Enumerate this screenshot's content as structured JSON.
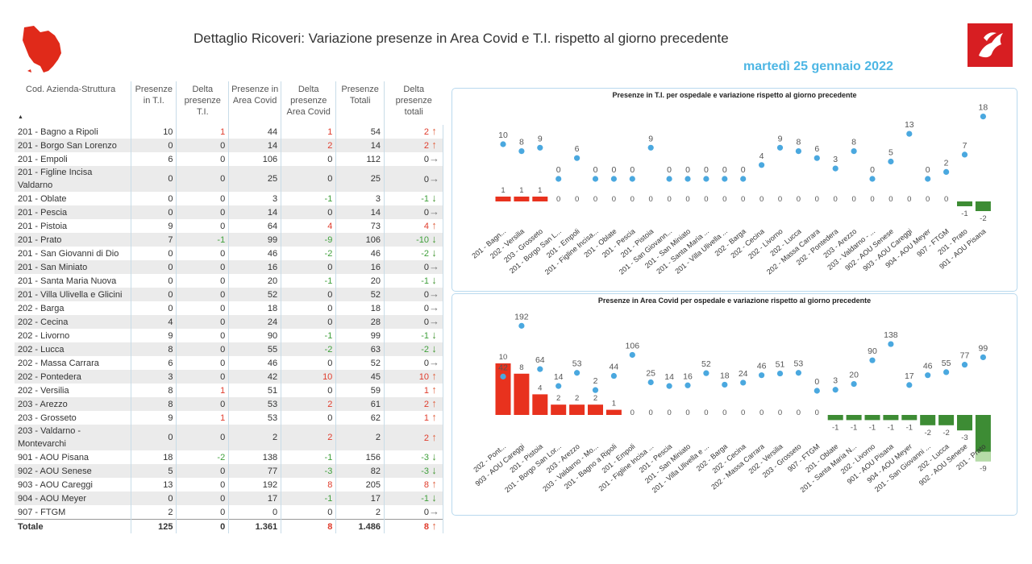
{
  "header": {
    "title": "Dettaglio Ricoveri: Variazione presenze in Area Covid e T.I. rispetto al giorno precedente",
    "date": "martedì 25 gennaio 2022"
  },
  "table": {
    "columns": [
      "Cod. Azienda-Struttura",
      "Presenze in T.I.",
      "Delta presenze T.I.",
      "Presenze in Area Covid",
      "Delta presenze Area Covid",
      "Presenze Totali",
      "Delta presenze totali"
    ],
    "rows": [
      {
        "name": "201 - Bagno a Ripoli",
        "ti": "10",
        "dti": "1",
        "ac": "44",
        "dac": "1",
        "tot": "54",
        "dtot": "2",
        "dir": "up"
      },
      {
        "name": "201 - Borgo San Lorenzo",
        "ti": "0",
        "dti": "0",
        "ac": "14",
        "dac": "2",
        "tot": "14",
        "dtot": "2",
        "dir": "up"
      },
      {
        "name": "201 - Empoli",
        "ti": "6",
        "dti": "0",
        "ac": "106",
        "dac": "0",
        "tot": "112",
        "dtot": "0",
        "dir": "right"
      },
      {
        "name": "201 - Figline Incisa Valdarno",
        "ti": "0",
        "dti": "0",
        "ac": "25",
        "dac": "0",
        "tot": "25",
        "dtot": "0",
        "dir": "right"
      },
      {
        "name": "201 - Oblate",
        "ti": "0",
        "dti": "0",
        "ac": "3",
        "dac": "-1",
        "tot": "3",
        "dtot": "-1",
        "dir": "down"
      },
      {
        "name": "201 - Pescia",
        "ti": "0",
        "dti": "0",
        "ac": "14",
        "dac": "0",
        "tot": "14",
        "dtot": "0",
        "dir": "right"
      },
      {
        "name": "201 - Pistoia",
        "ti": "9",
        "dti": "0",
        "ac": "64",
        "dac": "4",
        "tot": "73",
        "dtot": "4",
        "dir": "up"
      },
      {
        "name": "201 - Prato",
        "ti": "7",
        "dti": "-1",
        "ac": "99",
        "dac": "-9",
        "tot": "106",
        "dtot": "-10",
        "dir": "down"
      },
      {
        "name": "201 - San Giovanni di Dio",
        "ti": "0",
        "dti": "0",
        "ac": "46",
        "dac": "-2",
        "tot": "46",
        "dtot": "-2",
        "dir": "down"
      },
      {
        "name": "201 - San Miniato",
        "ti": "0",
        "dti": "0",
        "ac": "16",
        "dac": "0",
        "tot": "16",
        "dtot": "0",
        "dir": "right"
      },
      {
        "name": "201 - Santa Maria Nuova",
        "ti": "0",
        "dti": "0",
        "ac": "20",
        "dac": "-1",
        "tot": "20",
        "dtot": "-1",
        "dir": "down"
      },
      {
        "name": "201 - Villa Ulivella e Glicini",
        "ti": "0",
        "dti": "0",
        "ac": "52",
        "dac": "0",
        "tot": "52",
        "dtot": "0",
        "dir": "right"
      },
      {
        "name": "202 - Barga",
        "ti": "0",
        "dti": "0",
        "ac": "18",
        "dac": "0",
        "tot": "18",
        "dtot": "0",
        "dir": "right"
      },
      {
        "name": "202 - Cecina",
        "ti": "4",
        "dti": "0",
        "ac": "24",
        "dac": "0",
        "tot": "28",
        "dtot": "0",
        "dir": "right"
      },
      {
        "name": "202 - Livorno",
        "ti": "9",
        "dti": "0",
        "ac": "90",
        "dac": "-1",
        "tot": "99",
        "dtot": "-1",
        "dir": "down"
      },
      {
        "name": "202 - Lucca",
        "ti": "8",
        "dti": "0",
        "ac": "55",
        "dac": "-2",
        "tot": "63",
        "dtot": "-2",
        "dir": "down"
      },
      {
        "name": "202 - Massa Carrara",
        "ti": "6",
        "dti": "0",
        "ac": "46",
        "dac": "0",
        "tot": "52",
        "dtot": "0",
        "dir": "right"
      },
      {
        "name": "202 - Pontedera",
        "ti": "3",
        "dti": "0",
        "ac": "42",
        "dac": "10",
        "tot": "45",
        "dtot": "10",
        "dir": "up"
      },
      {
        "name": "202 - Versilia",
        "ti": "8",
        "dti": "1",
        "ac": "51",
        "dac": "0",
        "tot": "59",
        "dtot": "1",
        "dir": "up"
      },
      {
        "name": "203 - Arezzo",
        "ti": "8",
        "dti": "0",
        "ac": "53",
        "dac": "2",
        "tot": "61",
        "dtot": "2",
        "dir": "up"
      },
      {
        "name": "203 - Grosseto",
        "ti": "9",
        "dti": "1",
        "ac": "53",
        "dac": "0",
        "tot": "62",
        "dtot": "1",
        "dir": "up"
      },
      {
        "name": "203 - Valdarno - Montevarchi",
        "ti": "0",
        "dti": "0",
        "ac": "2",
        "dac": "2",
        "tot": "2",
        "dtot": "2",
        "dir": "up"
      },
      {
        "name": "901 - AOU Pisana",
        "ti": "18",
        "dti": "-2",
        "ac": "138",
        "dac": "-1",
        "tot": "156",
        "dtot": "-3",
        "dir": "down"
      },
      {
        "name": "902 - AOU Senese",
        "ti": "5",
        "dti": "0",
        "ac": "77",
        "dac": "-3",
        "tot": "82",
        "dtot": "-3",
        "dir": "down"
      },
      {
        "name": "903 - AOU Careggi",
        "ti": "13",
        "dti": "0",
        "ac": "192",
        "dac": "8",
        "tot": "205",
        "dtot": "8",
        "dir": "up"
      },
      {
        "name": "904 - AOU Meyer",
        "ti": "0",
        "dti": "0",
        "ac": "17",
        "dac": "-1",
        "tot": "17",
        "dtot": "-1",
        "dir": "down"
      },
      {
        "name": "907 - FTGM",
        "ti": "2",
        "dti": "0",
        "ac": "0",
        "dac": "0",
        "tot": "2",
        "dtot": "0",
        "dir": "right"
      }
    ],
    "total": {
      "name": "Totale",
      "ti": "125",
      "dti": "0",
      "ac": "1.361",
      "dac": "8",
      "tot": "1.486",
      "dtot": "8",
      "dir": "up"
    }
  },
  "chart_data": [
    {
      "type": "bar",
      "title": "Presenze in T.I. per ospedale e variazione rispetto al giorno precedente",
      "categories": [
        "201 - Bagn...",
        "202 - Versilia",
        "203 - Grosseto",
        "201 - Borgo San L...",
        "201 - Empoli",
        "201 - Figline Incisa...",
        "201 - Oblate",
        "201 - Pescia",
        "201 - Pistoia",
        "201 - San Giovann...",
        "201 - San Miniato",
        "201 - Santa Maria ...",
        "201 - Villa Ulivella ...",
        "202 - Barga",
        "202 - Cecina",
        "202 - Livorno",
        "202 - Lucca",
        "202 - Massa Carrara",
        "202 - Pontedera",
        "203 - Arezzo",
        "203 - Valdarno - ...",
        "902 - AOU Senese",
        "903 - AOU Careggi",
        "904 - AOU Meyer",
        "907 - FTGM",
        "201 - Prato",
        "901 - AOU Pisana"
      ],
      "series": [
        {
          "values": [
            10,
            8,
            9,
            0,
            6,
            0,
            0,
            0,
            9,
            0,
            0,
            0,
            0,
            0,
            4,
            9,
            8,
            6,
            3,
            8,
            0,
            5,
            13,
            0,
            2,
            7,
            18
          ]
        },
        {
          "values": [
            1,
            1,
            1,
            0,
            0,
            0,
            0,
            0,
            0,
            0,
            0,
            0,
            0,
            0,
            0,
            0,
            0,
            0,
            0,
            0,
            0,
            0,
            0,
            0,
            0,
            -1,
            -2
          ]
        }
      ],
      "colors": {
        "dots": "#4aa8df",
        "positive": "#e8321e",
        "negative": "#3d8c34"
      }
    },
    {
      "type": "bar",
      "title": "Presenze in Area Covid per ospedale e variazione rispetto al giorno precedente",
      "categories": [
        "202 - Pont...",
        "903 - AOU Careggi",
        "201 - Pistoia",
        "201 - Borgo San Lor...",
        "203 - Arezzo",
        "203 - Valdarno - Mo...",
        "201 - Bagno a Ripoli",
        "201 - Empoli",
        "201 - Figline Incisa ...",
        "201 - Pescia",
        "201 - San Miniato",
        "201 - Villa Ulivella e ...",
        "202 - Barga",
        "202 - Cecina",
        "202 - Massa Carrara",
        "202 - Versilia",
        "203 - Grosseto",
        "907 - FTGM",
        "201 - Oblate",
        "201 - Santa Maria N...",
        "202 - Livorno",
        "901 - AOU Pisana",
        "904 - AOU Meyer",
        "201 - San Giovanni ...",
        "202 - Lucca",
        "902 - AOU Senese",
        "201 - Prato"
      ],
      "series": [
        {
          "values": [
            42,
            192,
            64,
            14,
            53,
            2,
            44,
            106,
            25,
            14,
            16,
            52,
            18,
            24,
            46,
            51,
            53,
            0,
            3,
            20,
            90,
            138,
            17,
            46,
            55,
            77,
            99
          ]
        },
        {
          "values": [
            10,
            8,
            4,
            2,
            2,
            2,
            1,
            0,
            0,
            0,
            0,
            0,
            0,
            0,
            0,
            0,
            0,
            0,
            -1,
            -1,
            -1,
            -1,
            -1,
            -2,
            -2,
            -3,
            -9
          ]
        }
      ],
      "colors": {
        "dots": "#4aa8df",
        "positive": "#e8321e",
        "negative": "#3d8c34",
        "highlight": "#b6dca8"
      }
    }
  ]
}
